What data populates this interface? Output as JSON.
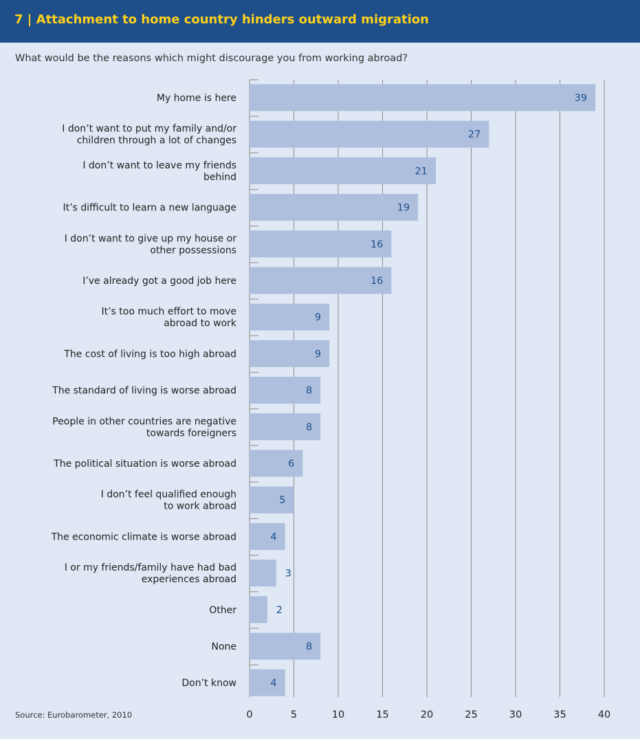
{
  "header": {
    "title": "7 | Attachment to home country hinders outward migration",
    "background": "#1e4f8a",
    "title_color": "#ffd119"
  },
  "question": "What would be the reasons which might discourage you from working abroad?",
  "source": "Source: Eurobarometer, 2010",
  "colors": {
    "panel": "#dfe8f4",
    "bar": "#aebfde",
    "value_label": "#1e4f8a",
    "grid": "#8c8c8c"
  },
  "chart_data": {
    "type": "bar",
    "orientation": "horizontal",
    "categories": [
      [
        "My home is here"
      ],
      [
        "I don’t want to put my family and/or",
        "children through a lot of changes"
      ],
      [
        "I don’t want to leave my friends",
        "behind"
      ],
      [
        "It’s difficult to learn a new language"
      ],
      [
        "I don’t want to give up my house or",
        "other possessions"
      ],
      [
        "I’ve already got a good job here"
      ],
      [
        "It’s too much effort to move",
        "abroad to work"
      ],
      [
        "The cost of living is too high abroad"
      ],
      [
        "The standard of living is worse abroad"
      ],
      [
        "People in other countries are negative",
        "towards foreigners"
      ],
      [
        "The political situation is worse abroad"
      ],
      [
        "I don’t feel qualified enough",
        "to work abroad"
      ],
      [
        "The economic climate is worse abroad"
      ],
      [
        "I or my friends/family have had bad",
        "experiences abroad"
      ],
      [
        "Other"
      ],
      [
        "None"
      ],
      [
        "Don’t know"
      ]
    ],
    "values": [
      39,
      27,
      21,
      19,
      16,
      16,
      9,
      9,
      8,
      8,
      6,
      5,
      4,
      3,
      2,
      8,
      4
    ],
    "value_labels": [
      "39",
      "27",
      "21",
      "19",
      "16",
      "16",
      "9",
      "9",
      "8",
      "8",
      "6",
      "5",
      "4",
      "3",
      "2",
      "8",
      "4"
    ],
    "xlim": [
      0,
      40
    ],
    "xticks": [
      0,
      5,
      10,
      15,
      20,
      25,
      30,
      35,
      40
    ],
    "xtick_labels": [
      "0",
      "5",
      "10",
      "15",
      "20",
      "25",
      "30",
      "35",
      "40"
    ],
    "grid": true,
    "legend": "none"
  }
}
